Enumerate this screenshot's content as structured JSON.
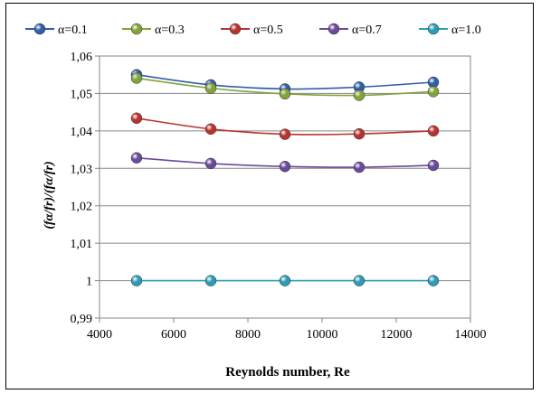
{
  "chart_data": {
    "type": "line",
    "xlabel": "Reynolds number, Re",
    "ylabel": "(fα/fr)/(fα/fr)",
    "xlim": [
      4000,
      14000
    ],
    "ylim": [
      0.99,
      1.06
    ],
    "x_ticks": [
      "4000",
      "6000",
      "8000",
      "10000",
      "12000",
      "14000"
    ],
    "y_ticks": [
      "0,99",
      "1",
      "1,01",
      "1,02",
      "1,03",
      "1,04",
      "1,05",
      "1,06"
    ],
    "grid": true,
    "legend_position": "top",
    "x": [
      5000,
      7000,
      9000,
      11000,
      13000
    ],
    "series": [
      {
        "name": "α=0.1",
        "color": "#2f5ea8",
        "values": [
          1.055,
          1.0523,
          1.0512,
          1.0517,
          1.053
        ]
      },
      {
        "name": "α=0.3",
        "color": "#82a33a",
        "values": [
          1.0541,
          1.0514,
          1.0499,
          1.0495,
          1.0505
        ]
      },
      {
        "name": "α=0.5",
        "color": "#b8332f",
        "values": [
          1.0434,
          1.0405,
          1.0391,
          1.0392,
          1.04
        ]
      },
      {
        "name": "α=0.7",
        "color": "#6a4a9a",
        "values": [
          1.0328,
          1.0313,
          1.0305,
          1.0303,
          1.0308
        ]
      },
      {
        "name": "α=1.0",
        "color": "#2d9bb5",
        "values": [
          1.0,
          1.0,
          1.0,
          1.0,
          1.0
        ]
      }
    ]
  }
}
